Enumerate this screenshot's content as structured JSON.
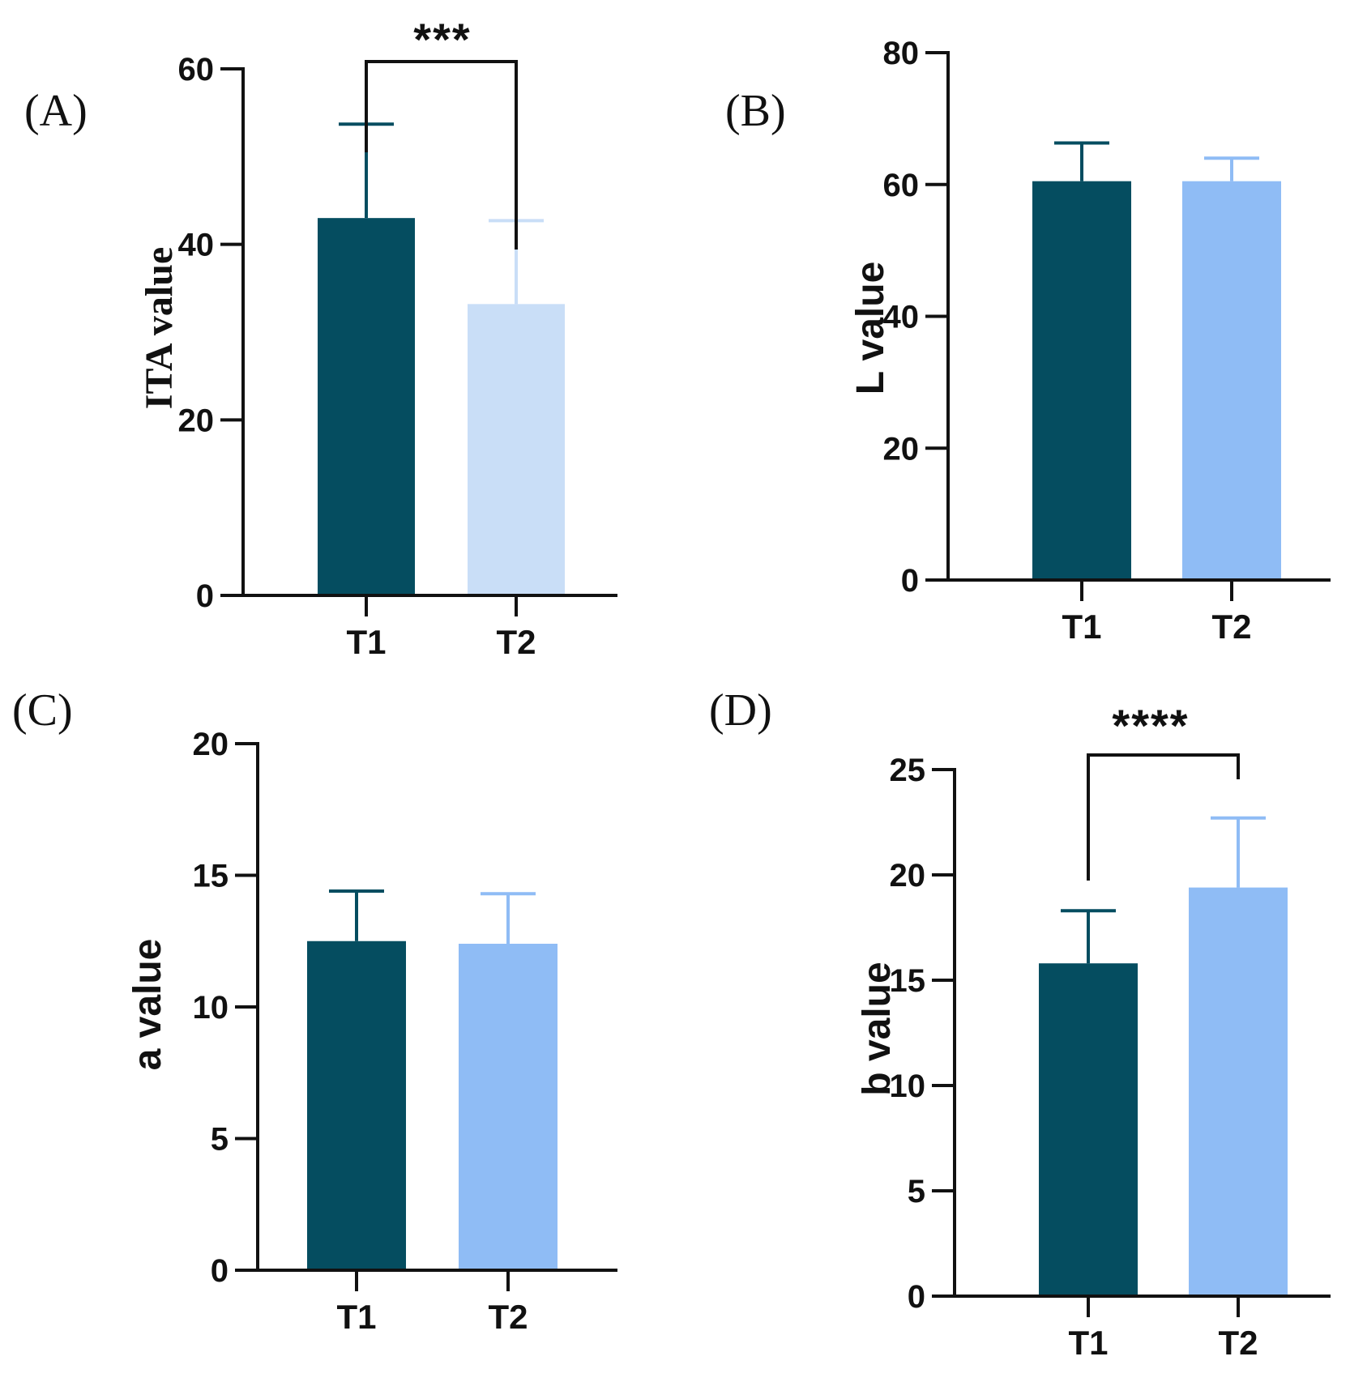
{
  "figure": {
    "colors": {
      "dark_teal": "#054d60",
      "light_blue": "#8fbcf5",
      "pale_blue": "#c9def7",
      "axis": "#111111"
    }
  },
  "chart_data": [
    {
      "panel": "(A)",
      "type": "bar",
      "categories": [
        "T1",
        "T2"
      ],
      "values": [
        43,
        33.2
      ],
      "errors": [
        10.7,
        9.5
      ],
      "bar_colors": [
        "#054d60",
        "#c9def7"
      ],
      "ylabel": "ITA value",
      "ylim": [
        0,
        60
      ],
      "yticks": [
        0,
        20,
        40,
        60
      ],
      "significance": "***",
      "grid": false
    },
    {
      "panel": "(B)",
      "type": "bar",
      "categories": [
        "T1",
        "T2"
      ],
      "values": [
        60.5,
        60.5
      ],
      "errors": [
        5.8,
        3.5
      ],
      "bar_colors": [
        "#054d60",
        "#8fbcf5"
      ],
      "ylabel": "L value",
      "ylim": [
        0,
        80
      ],
      "yticks": [
        0,
        20,
        40,
        60,
        80
      ],
      "significance": "",
      "grid": false
    },
    {
      "panel": "(C)",
      "type": "bar",
      "categories": [
        "T1",
        "T2"
      ],
      "values": [
        12.5,
        12.4
      ],
      "errors": [
        1.9,
        1.9
      ],
      "bar_colors": [
        "#054d60",
        "#8fbcf5"
      ],
      "ylabel": "a value",
      "ylim": [
        0,
        20
      ],
      "yticks": [
        0,
        5,
        10,
        15,
        20
      ],
      "significance": "",
      "grid": false
    },
    {
      "panel": "(D)",
      "type": "bar",
      "categories": [
        "T1",
        "T2"
      ],
      "values": [
        15.8,
        19.4
      ],
      "errors": [
        2.5,
        3.3
      ],
      "bar_colors": [
        "#054d60",
        "#8fbcf5"
      ],
      "ylabel": "b value",
      "ylim": [
        0,
        25
      ],
      "yticks": [
        0,
        5,
        10,
        15,
        20,
        25
      ],
      "significance": "****",
      "grid": false
    }
  ]
}
